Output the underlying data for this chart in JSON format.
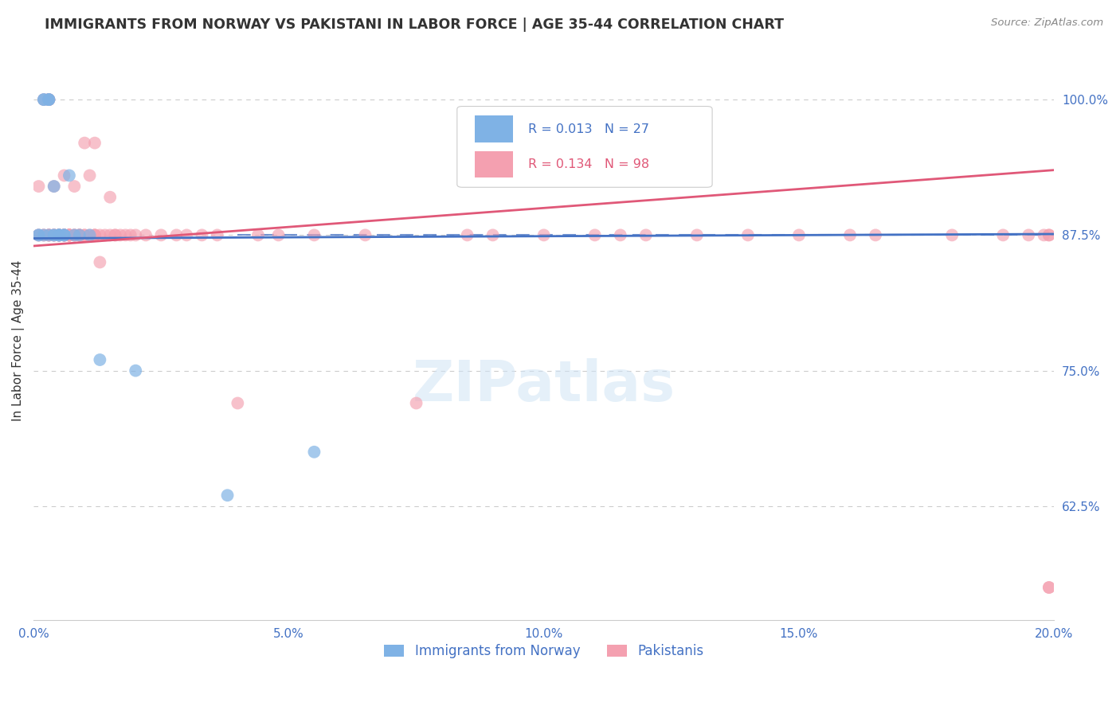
{
  "title": "IMMIGRANTS FROM NORWAY VS PAKISTANI IN LABOR FORCE | AGE 35-44 CORRELATION CHART",
  "source": "Source: ZipAtlas.com",
  "ylabel": "In Labor Force | Age 35-44",
  "xlim": [
    0.0,
    0.2
  ],
  "ylim": [
    0.52,
    1.035
  ],
  "yticks": [
    0.625,
    0.75,
    0.875,
    1.0
  ],
  "ytick_labels": [
    "62.5%",
    "75.0%",
    "87.5%",
    "100.0%"
  ],
  "xticks": [
    0.0,
    0.05,
    0.1,
    0.15,
    0.2
  ],
  "xtick_labels": [
    "0.0%",
    "5.0%",
    "10.0%",
    "15.0%",
    "20.0%"
  ],
  "norway_R": 0.013,
  "norway_N": 27,
  "pakistan_R": 0.134,
  "pakistan_N": 98,
  "norway_color": "#7fb2e5",
  "pakistan_color": "#f4a0b0",
  "norway_line_color": "#4472c4",
  "pakistan_line_color": "#e05878",
  "norway_scatter_x": [
    0.001,
    0.001,
    0.002,
    0.002,
    0.002,
    0.003,
    0.003,
    0.003,
    0.003,
    0.004,
    0.004,
    0.004,
    0.005,
    0.005,
    0.005,
    0.005,
    0.006,
    0.006,
    0.006,
    0.007,
    0.008,
    0.009,
    0.011,
    0.013,
    0.02,
    0.038,
    0.055
  ],
  "norway_scatter_y": [
    0.875,
    0.875,
    1.0,
    1.0,
    0.875,
    1.0,
    1.0,
    1.0,
    0.875,
    0.875,
    0.875,
    0.92,
    0.875,
    0.875,
    0.875,
    0.875,
    0.875,
    0.875,
    0.875,
    0.93,
    0.875,
    0.875,
    0.875,
    0.76,
    0.75,
    0.635,
    0.675
  ],
  "pakistan_scatter_x": [
    0.001,
    0.001,
    0.001,
    0.002,
    0.002,
    0.002,
    0.003,
    0.003,
    0.003,
    0.003,
    0.003,
    0.003,
    0.003,
    0.004,
    0.004,
    0.004,
    0.004,
    0.004,
    0.005,
    0.005,
    0.005,
    0.005,
    0.005,
    0.005,
    0.006,
    0.006,
    0.006,
    0.006,
    0.006,
    0.006,
    0.006,
    0.007,
    0.007,
    0.007,
    0.007,
    0.007,
    0.007,
    0.007,
    0.007,
    0.008,
    0.008,
    0.008,
    0.008,
    0.009,
    0.009,
    0.009,
    0.009,
    0.01,
    0.01,
    0.01,
    0.011,
    0.011,
    0.012,
    0.012,
    0.012,
    0.012,
    0.013,
    0.013,
    0.014,
    0.015,
    0.015,
    0.016,
    0.016,
    0.017,
    0.018,
    0.019,
    0.02,
    0.022,
    0.025,
    0.028,
    0.03,
    0.033,
    0.036,
    0.04,
    0.044,
    0.048,
    0.055,
    0.065,
    0.075,
    0.085,
    0.09,
    0.1,
    0.11,
    0.115,
    0.12,
    0.13,
    0.14,
    0.15,
    0.16,
    0.165,
    0.18,
    0.19,
    0.195,
    0.198,
    0.199,
    0.199,
    0.199,
    0.199
  ],
  "pakistan_scatter_y": [
    0.875,
    0.92,
    0.875,
    1.0,
    0.875,
    0.875,
    1.0,
    1.0,
    1.0,
    0.875,
    0.875,
    0.875,
    0.875,
    0.875,
    0.92,
    0.875,
    0.875,
    0.875,
    0.875,
    0.875,
    0.875,
    0.875,
    0.875,
    0.875,
    0.93,
    0.875,
    0.875,
    0.875,
    0.875,
    0.875,
    0.875,
    0.875,
    0.875,
    0.875,
    0.875,
    0.875,
    0.875,
    0.875,
    0.875,
    0.875,
    0.92,
    0.875,
    0.875,
    0.875,
    0.875,
    0.875,
    0.875,
    0.875,
    0.875,
    0.96,
    0.93,
    0.875,
    0.875,
    0.96,
    0.875,
    0.875,
    0.85,
    0.875,
    0.875,
    0.91,
    0.875,
    0.875,
    0.875,
    0.875,
    0.875,
    0.875,
    0.875,
    0.875,
    0.875,
    0.875,
    0.875,
    0.875,
    0.875,
    0.72,
    0.875,
    0.875,
    0.875,
    0.875,
    0.72,
    0.875,
    0.875,
    0.875,
    0.875,
    0.875,
    0.875,
    0.875,
    0.875,
    0.875,
    0.875,
    0.875,
    0.875,
    0.875,
    0.875,
    0.875,
    0.875,
    0.875,
    0.55,
    0.55
  ],
  "norway_trend_x": [
    0.0,
    0.2
  ],
  "norway_trend_y": [
    0.872,
    0.876
  ],
  "pakistan_trend_x": [
    0.0,
    0.2
  ],
  "pakistan_trend_y": [
    0.865,
    0.935
  ],
  "dashed_line_y": 0.875,
  "legend_norway": "Immigrants from Norway",
  "legend_pakistan": "Pakistanis",
  "background_color": "#ffffff",
  "grid_color": "#cccccc",
  "title_color": "#333333",
  "axis_label_color": "#333333",
  "tick_label_color": "#4472c4",
  "source_color": "#888888",
  "watermark_text": "ZIPatlas",
  "watermark_color": "#d0e4f5"
}
